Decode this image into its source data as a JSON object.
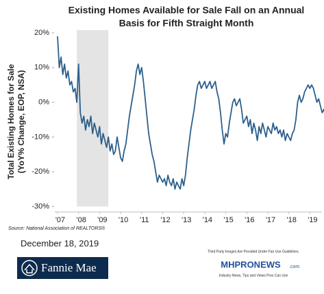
{
  "chart_data": {
    "type": "line",
    "title": [
      "Existing Homes Available for Sale Fall on an Annual",
      "Basis for Fifth Straight Month"
    ],
    "y_label": [
      "Total Existing Homes for Sale",
      "(YoY% Change, EOP, NSA)"
    ],
    "source": "Source: National Association of REALTORS®",
    "categories": [
      "'07",
      null,
      null,
      null,
      null,
      null,
      null,
      null,
      null,
      null,
      null,
      null,
      "'08",
      null,
      null,
      null,
      null,
      null,
      null,
      null,
      null,
      null,
      null,
      null,
      "'09",
      null,
      null,
      null,
      null,
      null,
      null,
      null,
      null,
      null,
      null,
      null,
      "'10",
      null,
      null,
      null,
      null,
      null,
      null,
      null,
      null,
      null,
      null,
      null,
      "'11",
      null,
      null,
      null,
      null,
      null,
      null,
      null,
      null,
      null,
      null,
      null,
      "'12",
      null,
      null,
      null,
      null,
      null,
      null,
      null,
      null,
      null,
      null,
      null,
      "'13",
      null,
      null,
      null,
      null,
      null,
      null,
      null,
      null,
      null,
      null,
      null,
      "'14",
      null,
      null,
      null,
      null,
      null,
      null,
      null,
      null,
      null,
      null,
      null,
      "'15",
      null,
      null,
      null,
      null,
      null,
      null,
      null,
      null,
      null,
      null,
      null,
      "'16",
      null,
      null,
      null,
      null,
      null,
      null,
      null,
      null,
      null,
      null,
      null,
      "'17",
      null,
      null,
      null,
      null,
      null,
      null,
      null,
      null,
      null,
      null,
      null,
      "'18",
      null,
      null,
      null,
      null,
      null,
      null,
      null,
      null,
      null,
      null,
      null,
      "'19",
      null,
      null,
      null,
      null,
      null,
      null,
      null,
      null,
      null,
      null
    ],
    "series": [
      {
        "color": "#2b5f8c",
        "values": [
          19,
          10,
          13,
          8,
          11,
          7,
          9,
          5,
          6,
          3,
          4,
          0,
          11,
          -3,
          -6,
          -4,
          -8,
          -5,
          -7,
          -4,
          -9,
          -6,
          -8,
          -10,
          -7,
          -12,
          -9,
          -11,
          -13,
          -10,
          -14,
          -12,
          -15,
          -14,
          -10,
          -13,
          -16,
          -17,
          -14,
          -12,
          -8,
          -4,
          -1,
          2,
          5,
          9,
          11,
          8,
          10,
          6,
          1,
          -4,
          -9,
          -12,
          -15,
          -17,
          -20,
          -23,
          -21,
          -22,
          -23,
          -22,
          -24,
          -21,
          -23,
          -24,
          -22,
          -25,
          -23,
          -24,
          -25,
          -22,
          -24,
          -21,
          -16,
          -12,
          -8,
          -5,
          -2,
          2,
          5,
          6,
          4,
          5,
          6,
          4,
          5,
          6,
          4,
          5,
          6,
          3,
          1,
          -3,
          -8,
          -12,
          -9,
          -10,
          -6,
          -3,
          0,
          1,
          -1,
          0,
          1,
          -2,
          -6,
          -5,
          -4,
          -7,
          -5,
          -9,
          -6,
          -8,
          -11,
          -7,
          -9,
          -6,
          -8,
          -10,
          -7,
          -8,
          -9,
          -6,
          -8,
          -7,
          -9,
          -8,
          -10,
          -8,
          -11,
          -9,
          -10,
          -11,
          -9,
          -8,
          -5,
          0,
          2,
          0,
          1,
          3,
          4,
          5,
          4,
          5,
          4,
          2,
          0,
          1,
          -1,
          -3,
          -2,
          -4,
          -4
        ]
      }
    ],
    "shade": {
      "from": 11,
      "to": 29,
      "color": "#e4e4e4"
    },
    "ylim": [
      -30,
      20
    ],
    "yticks": [
      {
        "value": -30,
        "label": "-30%"
      },
      {
        "value": -20,
        "label": "-20%"
      },
      {
        "value": -10,
        "label": "-10%"
      },
      {
        "value": 0,
        "label": "0%"
      },
      {
        "value": 10,
        "label": "10%"
      },
      {
        "value": 20,
        "label": "20%"
      }
    ],
    "grid": false
  },
  "footer": {
    "date": "December 18, 2019",
    "logo": "Fannie Mae",
    "watermark": [
      "Third Party Images Are Provided Under Fair Use Guidelines.",
      "MHPRONEWS",
      ".com",
      "Industry News, Tips and Views Pros Can Use"
    ]
  }
}
